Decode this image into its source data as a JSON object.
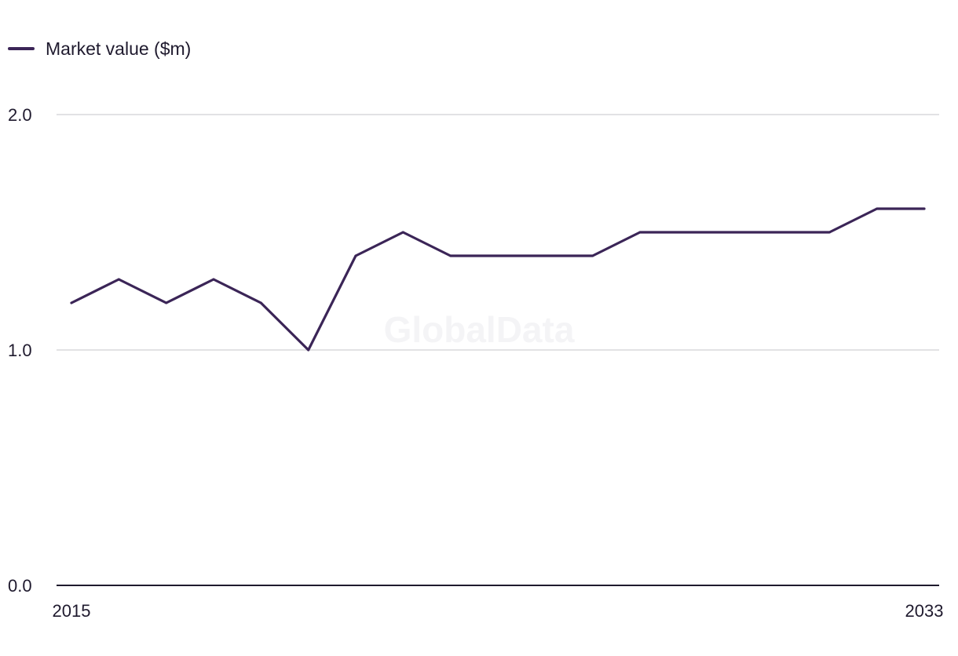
{
  "chart_data": {
    "type": "line",
    "x": [
      2015,
      2016,
      2017,
      2018,
      2019,
      2020,
      2021,
      2022,
      2023,
      2024,
      2025,
      2026,
      2027,
      2028,
      2029,
      2030,
      2031,
      2032,
      2033
    ],
    "series": [
      {
        "name": "Market value ($m)",
        "values": [
          1.2,
          1.3,
          1.2,
          1.3,
          1.2,
          1.0,
          1.4,
          1.5,
          1.4,
          1.4,
          1.4,
          1.4,
          1.5,
          1.5,
          1.5,
          1.5,
          1.5,
          1.6,
          1.6
        ],
        "color": "#3b2557"
      }
    ],
    "ylim": [
      0.0,
      2.0
    ],
    "yticks": [
      "0.0",
      "1.0",
      "2.0"
    ],
    "xticks": [
      "2015",
      "2033"
    ],
    "grid": true,
    "legend": "top-left",
    "watermark": "GlobalData",
    "colors": {
      "line": "#3b2557",
      "grid": "#d8d8dc",
      "axis": "#1f1a2e",
      "text": "#1f1a2e"
    }
  }
}
